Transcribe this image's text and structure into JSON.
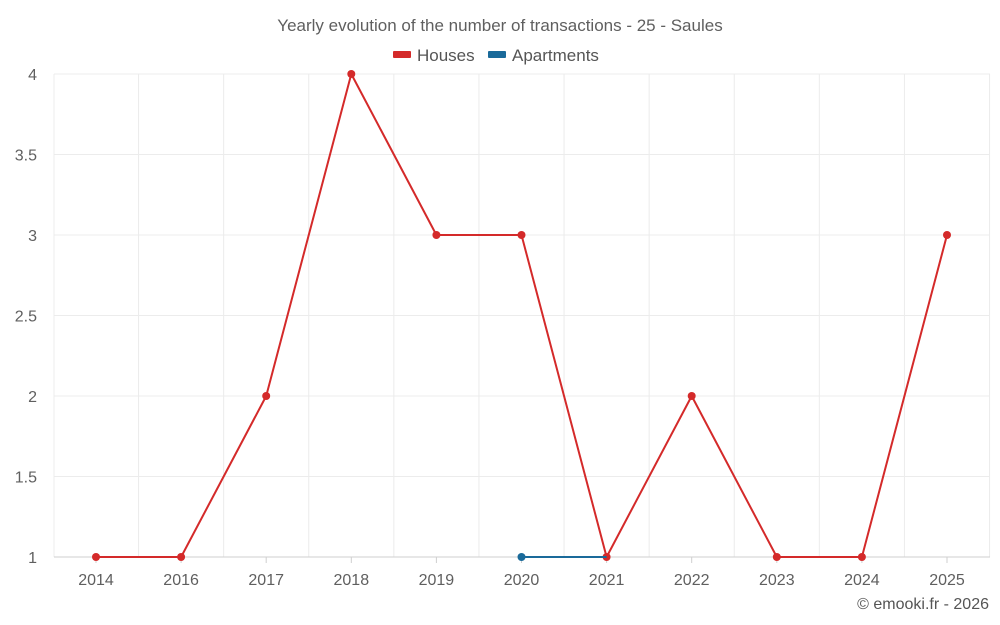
{
  "chart_data": {
    "type": "line",
    "title": "Yearly evolution of the number of transactions - 25 - Saules",
    "categories": [
      "2014",
      "2016",
      "2017",
      "2018",
      "2019",
      "2020",
      "2021",
      "2022",
      "2023",
      "2024",
      "2025"
    ],
    "y_ticks": [
      "1",
      "1.5",
      "2",
      "2.5",
      "3",
      "3.5",
      "4"
    ],
    "ylim": [
      1,
      4
    ],
    "grid": true,
    "legend_position": "top-center",
    "series": [
      {
        "name": "Houses",
        "color": "#d42a2a",
        "values": [
          1,
          1,
          2,
          4,
          3,
          3,
          1,
          2,
          1,
          1,
          3
        ]
      },
      {
        "name": "Apartments",
        "color": "#1a6a9a",
        "values": [
          null,
          null,
          null,
          null,
          null,
          1,
          1,
          null,
          null,
          null,
          null
        ]
      }
    ],
    "credit": "© emooki.fr - 2026"
  }
}
